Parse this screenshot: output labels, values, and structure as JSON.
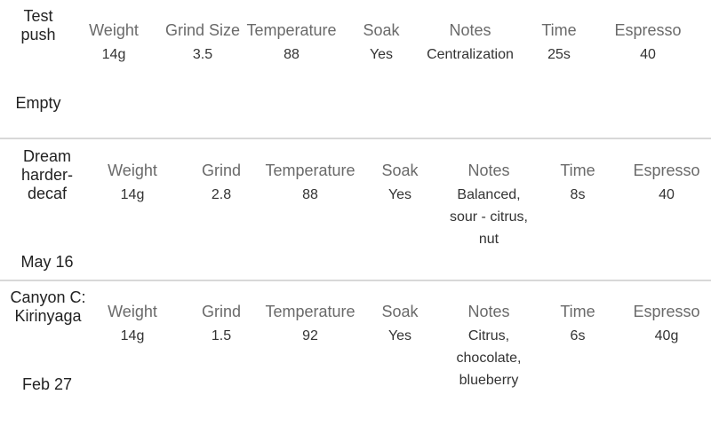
{
  "entries": [
    {
      "name": "Test\npush",
      "date": "Empty",
      "fields": [
        {
          "label": "Weight",
          "value": "14g"
        },
        {
          "label": "Grind Size",
          "value": "3.5"
        },
        {
          "label": "Temperature",
          "value": "88"
        },
        {
          "label": "Soak",
          "value": "Yes"
        },
        {
          "label": "Notes",
          "value": "Centralization"
        },
        {
          "label": "Time",
          "value": "25s"
        },
        {
          "label": "Espresso",
          "value": "40"
        }
      ]
    },
    {
      "name": "Dream\nharder-\ndecaf",
      "date": "May 16",
      "fields": [
        {
          "label": "Weight",
          "value": "14g"
        },
        {
          "label": "Grind",
          "value": "2.8"
        },
        {
          "label": "Temperature",
          "value": "88"
        },
        {
          "label": "Soak",
          "value": "Yes"
        },
        {
          "label": "Notes",
          "value": "Balanced,\nsour - citrus,\nnut"
        },
        {
          "label": "Time",
          "value": "8s"
        },
        {
          "label": "Espresso",
          "value": "40"
        }
      ]
    },
    {
      "name": "Canyon C:\nKirinyaga",
      "date": "Feb 27",
      "fields": [
        {
          "label": "Weight",
          "value": "14g"
        },
        {
          "label": "Grind",
          "value": "1.5"
        },
        {
          "label": "Temperature",
          "value": "92"
        },
        {
          "label": "Soak",
          "value": "Yes"
        },
        {
          "label": "Notes",
          "value": "Citrus,\nchocolate,\nblueberry"
        },
        {
          "label": "Time",
          "value": "6s"
        },
        {
          "label": "Espresso",
          "value": "40g"
        }
      ]
    }
  ]
}
